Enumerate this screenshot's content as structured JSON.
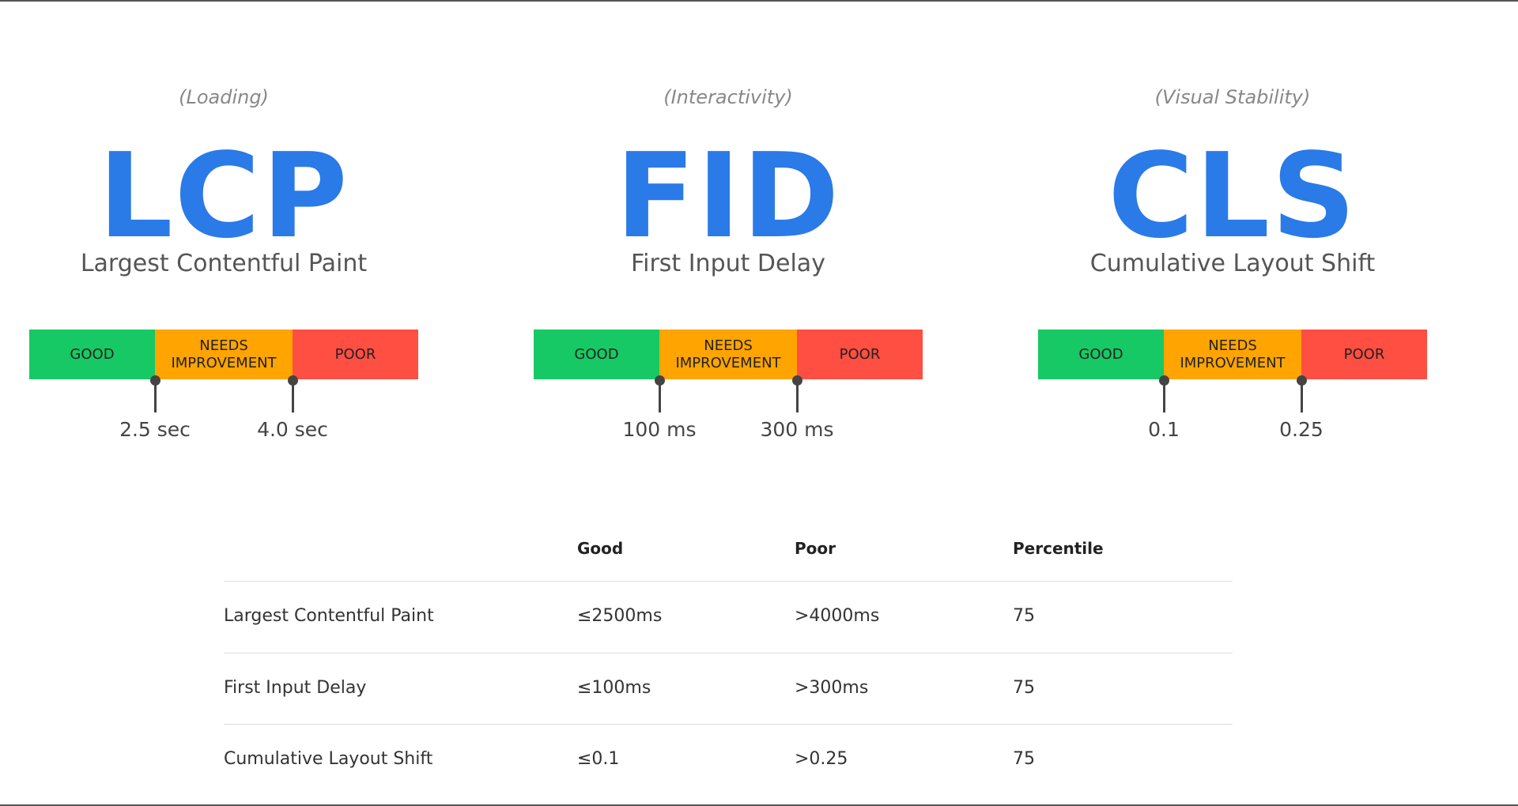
{
  "metrics": [
    {
      "category": "(Loading)",
      "abbr": "LCP",
      "name": "Largest Contentful Paint",
      "bands": [
        "GOOD",
        "NEEDS IMPROVEMENT",
        "POOR"
      ],
      "thresholds": [
        "2.5 sec",
        "4.0 sec"
      ]
    },
    {
      "category": "(Interactivity)",
      "abbr": "FID",
      "name": "First Input Delay",
      "bands": [
        "GOOD",
        "NEEDS IMPROVEMENT",
        "POOR"
      ],
      "thresholds": [
        "100 ms",
        "300 ms"
      ]
    },
    {
      "category": "(Visual Stability)",
      "abbr": "CLS",
      "name": "Cumulative Layout Shift",
      "bands": [
        "GOOD",
        "NEEDS IMPROVEMENT",
        "POOR"
      ],
      "thresholds": [
        "0.1",
        "0.25"
      ]
    }
  ],
  "table": {
    "header": [
      "Good",
      "Poor",
      "Percentile"
    ],
    "rows": [
      [
        "Largest Contentful Paint",
        "≤2500ms",
        ">4000ms",
        "75"
      ],
      [
        "First Input Delay",
        "≤100ms",
        ">300ms",
        "75"
      ],
      [
        "Cumulative Layout Shift",
        "≤0.1",
        ">0.25",
        "75"
      ]
    ]
  }
}
